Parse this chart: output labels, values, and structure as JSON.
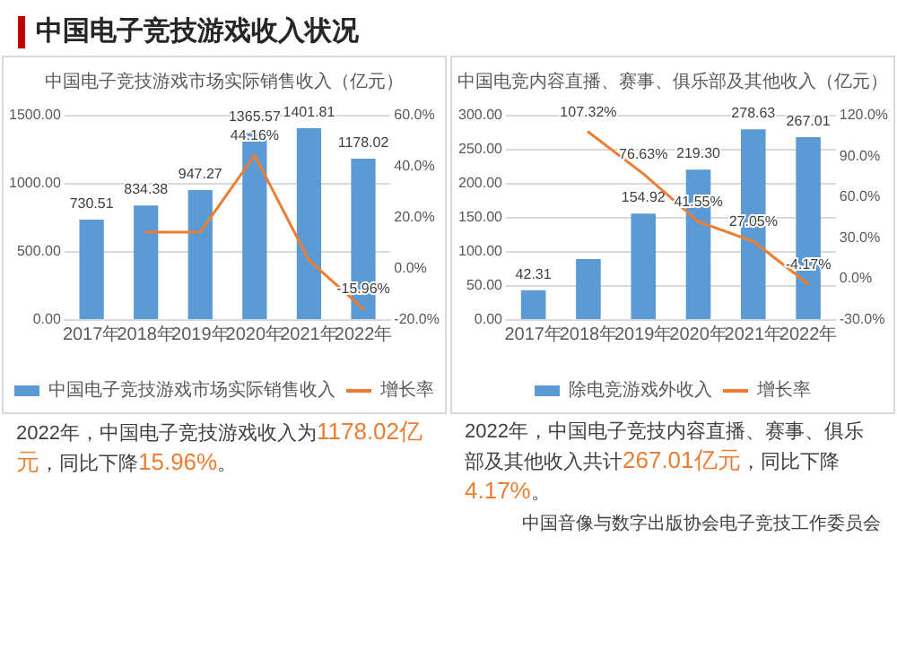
{
  "chart_data": [
    {
      "type": "bar",
      "title": "中国电子竞技游戏市场实际销售收入（亿元）",
      "categories": [
        "2017年",
        "2018年",
        "2019年",
        "2020年",
        "2021年",
        "2022年"
      ],
      "series": [
        {
          "name": "中国电子竞技游戏市场实际销售收入",
          "color": "#5b9bd5",
          "values": [
            730.51,
            834.38,
            947.27,
            1365.57,
            1401.81,
            1178.02
          ],
          "value_labels": [
            "730.51",
            "834.38",
            "947.27",
            "1365.57",
            "1401.81",
            "1178.02"
          ]
        },
        {
          "name": "增长率",
          "type": "line",
          "axis": "y2",
          "color": "#ed7d31",
          "values": [
            null,
            14,
            14,
            44.16,
            3,
            -15.96
          ],
          "value_labels": [
            null,
            null,
            null,
            "44.16%",
            null,
            "-15.96%"
          ]
        }
      ],
      "ylim": [
        0,
        1500
      ],
      "yticks": [
        {
          "value": 0,
          "label": "0.00"
        },
        {
          "value": 500,
          "label": "500.00"
        },
        {
          "value": 1000,
          "label": "1000.00"
        },
        {
          "value": 1500,
          "label": "1500.00"
        }
      ],
      "y2lim": [
        -20,
        60
      ],
      "y2ticks": [
        {
          "value": -20,
          "label": "-20.0%"
        },
        {
          "value": 0,
          "label": "0.0%"
        },
        {
          "value": 20,
          "label": "20.0%"
        },
        {
          "value": 40,
          "label": "40.0%"
        },
        {
          "value": 60,
          "label": "60.0%"
        }
      ],
      "legend": "bottom",
      "marker": "none",
      "grid": "y",
      "annotations": [
        "中国电子竞技游戏收入状况",
        "2022年，中国电子竞技游戏收入为1178.02亿元，同比下降15.96%。"
      ]
    },
    {
      "type": "bar",
      "title": "中国电竞内容直播、赛事、俱乐部及其他收入（亿元）",
      "categories": [
        "2017年",
        "2018年",
        "2019年",
        "2020年",
        "2021年",
        "2022年"
      ],
      "series": [
        {
          "name": "除电竞游戏外收入",
          "color": "#5b9bd5",
          "values": [
            42.31,
            88,
            154.92,
            219.3,
            278.63,
            267.01
          ],
          "value_labels": [
            "42.31",
            null,
            "154.92",
            "219.30",
            "278.63",
            "267.01"
          ]
        },
        {
          "name": "增长率",
          "type": "line",
          "axis": "y2",
          "color": "#ed7d31",
          "values": [
            null,
            107.32,
            76.63,
            41.55,
            27.05,
            -4.17
          ],
          "value_labels": [
            null,
            "107.32%",
            "76.63%",
            "41.55%",
            "27.05%",
            "-4.17%"
          ]
        }
      ],
      "ylim": [
        0,
        300
      ],
      "yticks": [
        {
          "value": 0,
          "label": "0.00"
        },
        {
          "value": 50,
          "label": "50.00"
        },
        {
          "value": 100,
          "label": "100.00"
        },
        {
          "value": 150,
          "label": "150.00"
        },
        {
          "value": 200,
          "label": "200.00"
        },
        {
          "value": 250,
          "label": "250.00"
        },
        {
          "value": 300,
          "label": "300.00"
        }
      ],
      "y2lim": [
        -30,
        120
      ],
      "y2ticks": [
        {
          "value": -30,
          "label": "-30.0%"
        },
        {
          "value": 0,
          "label": "0.0%"
        },
        {
          "value": 30,
          "label": "30.0%"
        },
        {
          "value": 60,
          "label": "60.0%"
        },
        {
          "value": 90,
          "label": "90.0%"
        },
        {
          "value": 120,
          "label": "120.0%"
        }
      ],
      "legend": "bottom",
      "marker": "none",
      "grid": "y",
      "annotations": [
        "2022年，中国电子竞技内容直播、赛事、俱乐部及其他收入共计267.01亿元，同比下降4.17%。",
        "中国音像与数字出版协会电子竞技工作委员会"
      ]
    }
  ]
}
